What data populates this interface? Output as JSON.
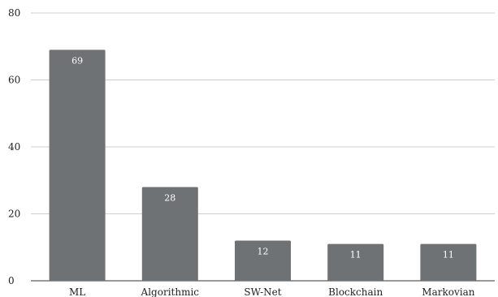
{
  "chart_data": {
    "type": "bar",
    "title": "",
    "xlabel": "",
    "ylabel": "",
    "categories": [
      "ML",
      "Algorithmic",
      "SW-Net",
      "Blockchain",
      "Markovian"
    ],
    "values": [
      69,
      28,
      12,
      11,
      11
    ],
    "data_labels": [
      "69",
      "28",
      "12",
      "11",
      "11"
    ],
    "ylim": [
      0,
      80
    ],
    "yticks": [
      0,
      20,
      40,
      60,
      80
    ],
    "ytick_labels": [
      "0",
      "20",
      "40",
      "60",
      "80"
    ],
    "grid": true,
    "legend": "none",
    "colors": {
      "bar": "#6f7275",
      "grid": "#cfcfcf",
      "axis": "#333333",
      "data_label": "#ffffff"
    }
  }
}
